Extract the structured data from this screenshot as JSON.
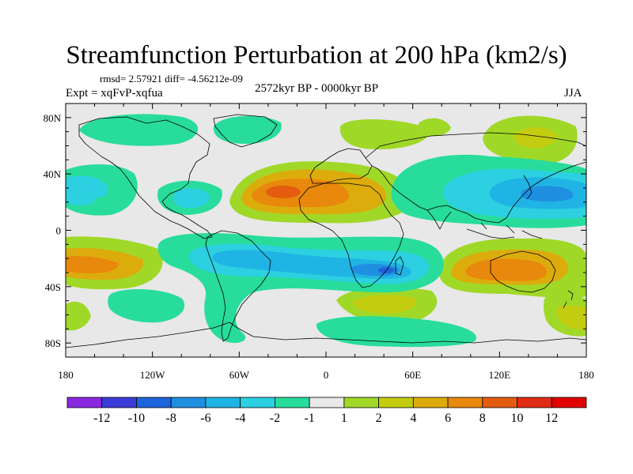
{
  "figure": {
    "title": "Streamfunction Perturbation at 200 hPa (km2/s)",
    "stats": "rmsd= 2.57921 diff= -4.56212e-09",
    "experiment": "Expt = xqFvP-xqfua",
    "period": "2572kyr BP - 0000kyr BP",
    "season": "JJA"
  },
  "chart_data": {
    "type": "filled-contour-map",
    "variable": "Streamfunction perturbation at 200 hPa",
    "units": "km2/s",
    "projection": "cylindrical equidistant",
    "lon_range": [
      -180,
      180
    ],
    "lat_range": [
      -90,
      90
    ],
    "x_ticks": [
      "180",
      "120W",
      "60W",
      "0",
      "60E",
      "120E",
      "180"
    ],
    "y_ticks": [
      "80N",
      "40N",
      "0",
      "40S",
      "80S"
    ],
    "colorbar": {
      "labels": [
        "-12",
        "-10",
        "-8",
        "-6",
        "-4",
        "-2",
        "-1",
        "1",
        "2",
        "4",
        "6",
        "8",
        "10",
        "12"
      ],
      "colors": [
        "#8a28e0",
        "#3c3cd8",
        "#1e64dc",
        "#1f8fe0",
        "#20b4e4",
        "#2cd0e0",
        "#28dc9c",
        "#e8e8e8",
        "#a0d828",
        "#c4cc10",
        "#dcac0c",
        "#e8880c",
        "#e45c10",
        "#e02c14",
        "#e00000"
      ]
    },
    "features": [
      {
        "sign": "negative",
        "region": "North Atlantic / North America",
        "peak": -4
      },
      {
        "sign": "negative",
        "region": "Pacific-Asia (30N, 150E)",
        "peak": -8
      },
      {
        "sign": "negative",
        "region": "Southern Atlantic-Indian band (30S)",
        "peak": -8
      },
      {
        "sign": "positive",
        "region": "North Africa-Atlantic (30N, 30W-10W)",
        "peak": 8
      },
      {
        "sign": "positive",
        "region": "Australia (30S, 120E)",
        "peak": 6
      },
      {
        "sign": "positive",
        "region": "South Pacific (30S, 170W)",
        "peak": 6
      }
    ]
  }
}
